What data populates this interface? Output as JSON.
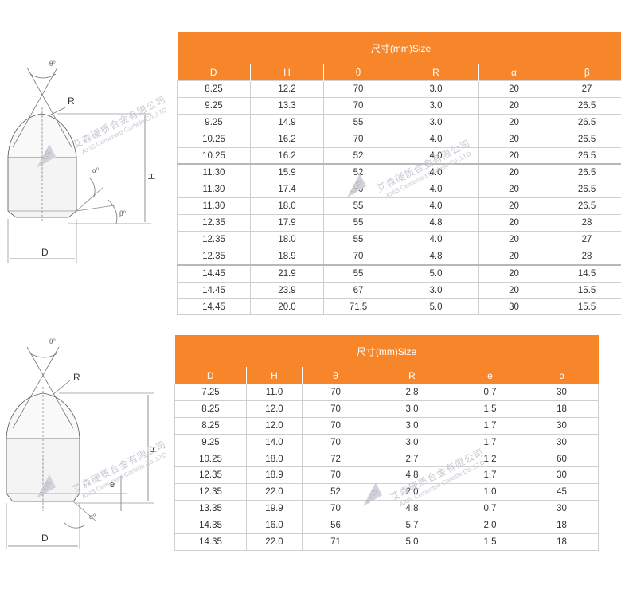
{
  "diagram1": {
    "labels": {
      "theta": "θ°",
      "r": "R",
      "alpha": "α°",
      "beta": "β°",
      "h": "H",
      "d": "D"
    }
  },
  "diagram2": {
    "labels": {
      "theta": "θ°",
      "r": "R",
      "e": "e",
      "alpha": "α°",
      "h": "H",
      "d": "D"
    }
  },
  "table1": {
    "title": "尺寸(mm)Size",
    "columns": [
      "D",
      "H",
      "θ",
      "R",
      "α",
      "β"
    ],
    "rows": [
      [
        "8.25",
        "12.2",
        "70",
        "3.0",
        "20",
        "27"
      ],
      [
        "9.25",
        "13.3",
        "70",
        "3.0",
        "20",
        "26.5"
      ],
      [
        "9.25",
        "14.9",
        "55",
        "3.0",
        "20",
        "26.5"
      ],
      [
        "10.25",
        "16.2",
        "70",
        "4.0",
        "20",
        "26.5"
      ],
      [
        "10.25",
        "16.2",
        "52",
        "4.0",
        "20",
        "26.5"
      ],
      [
        "11.30",
        "15.9",
        "52",
        "4.0",
        "20",
        "26.5"
      ],
      [
        "11.30",
        "17.4",
        "60",
        "4.0",
        "20",
        "26.5"
      ],
      [
        "11.30",
        "18.0",
        "55",
        "4.0",
        "20",
        "26.5"
      ],
      [
        "12.35",
        "17.9",
        "55",
        "4.8",
        "20",
        "28"
      ],
      [
        "12.35",
        "18.0",
        "55",
        "4.0",
        "20",
        "27"
      ],
      [
        "12.35",
        "18.9",
        "70",
        "4.8",
        "20",
        "28"
      ],
      [
        "14.45",
        "21.9",
        "55",
        "5.0",
        "20",
        "14.5"
      ],
      [
        "14.45",
        "23.9",
        "67",
        "3.0",
        "20",
        "15.5"
      ],
      [
        "14.45",
        "20.0",
        "71.5",
        "5.0",
        "30",
        "15.5"
      ]
    ],
    "separators": [
      5,
      11
    ]
  },
  "table2": {
    "title": "尺寸(mm)Size",
    "columns": [
      "D",
      "H",
      "θ",
      "R",
      "e",
      "α"
    ],
    "rows": [
      [
        "7.25",
        "11.0",
        "70",
        "2.8",
        "0.7",
        "30"
      ],
      [
        "8.25",
        "12.0",
        "70",
        "3.0",
        "1.5",
        "18"
      ],
      [
        "8.25",
        "12.0",
        "70",
        "3.0",
        "1.7",
        "30"
      ],
      [
        "9.25",
        "14.0",
        "70",
        "3.0",
        "1.7",
        "30"
      ],
      [
        "10.25",
        "18.0",
        "72",
        "2.7",
        "1.2",
        "60"
      ],
      [
        "12.35",
        "18.9",
        "70",
        "4.8",
        "1.7",
        "30"
      ],
      [
        "12.35",
        "22.0",
        "52",
        "2.0",
        "1.0",
        "45"
      ],
      [
        "13.35",
        "19.9",
        "70",
        "4.8",
        "0.7",
        "30"
      ],
      [
        "14.35",
        "16.0",
        "56",
        "5.7",
        "2.0",
        "18"
      ],
      [
        "14.35",
        "22.0",
        "71",
        "5.0",
        "1.5",
        "18"
      ]
    ],
    "separators": []
  },
  "watermark": {
    "company_cn": "艾森硬质合金有限公司",
    "company_en": "AXIS Cemented Carbide Co.,LTD",
    "brand": "AXIS",
    "color": "#c9c9d3"
  },
  "colors": {
    "header": "#f7862b",
    "header_text": "#ffffff",
    "border": "#cfcfcf"
  }
}
